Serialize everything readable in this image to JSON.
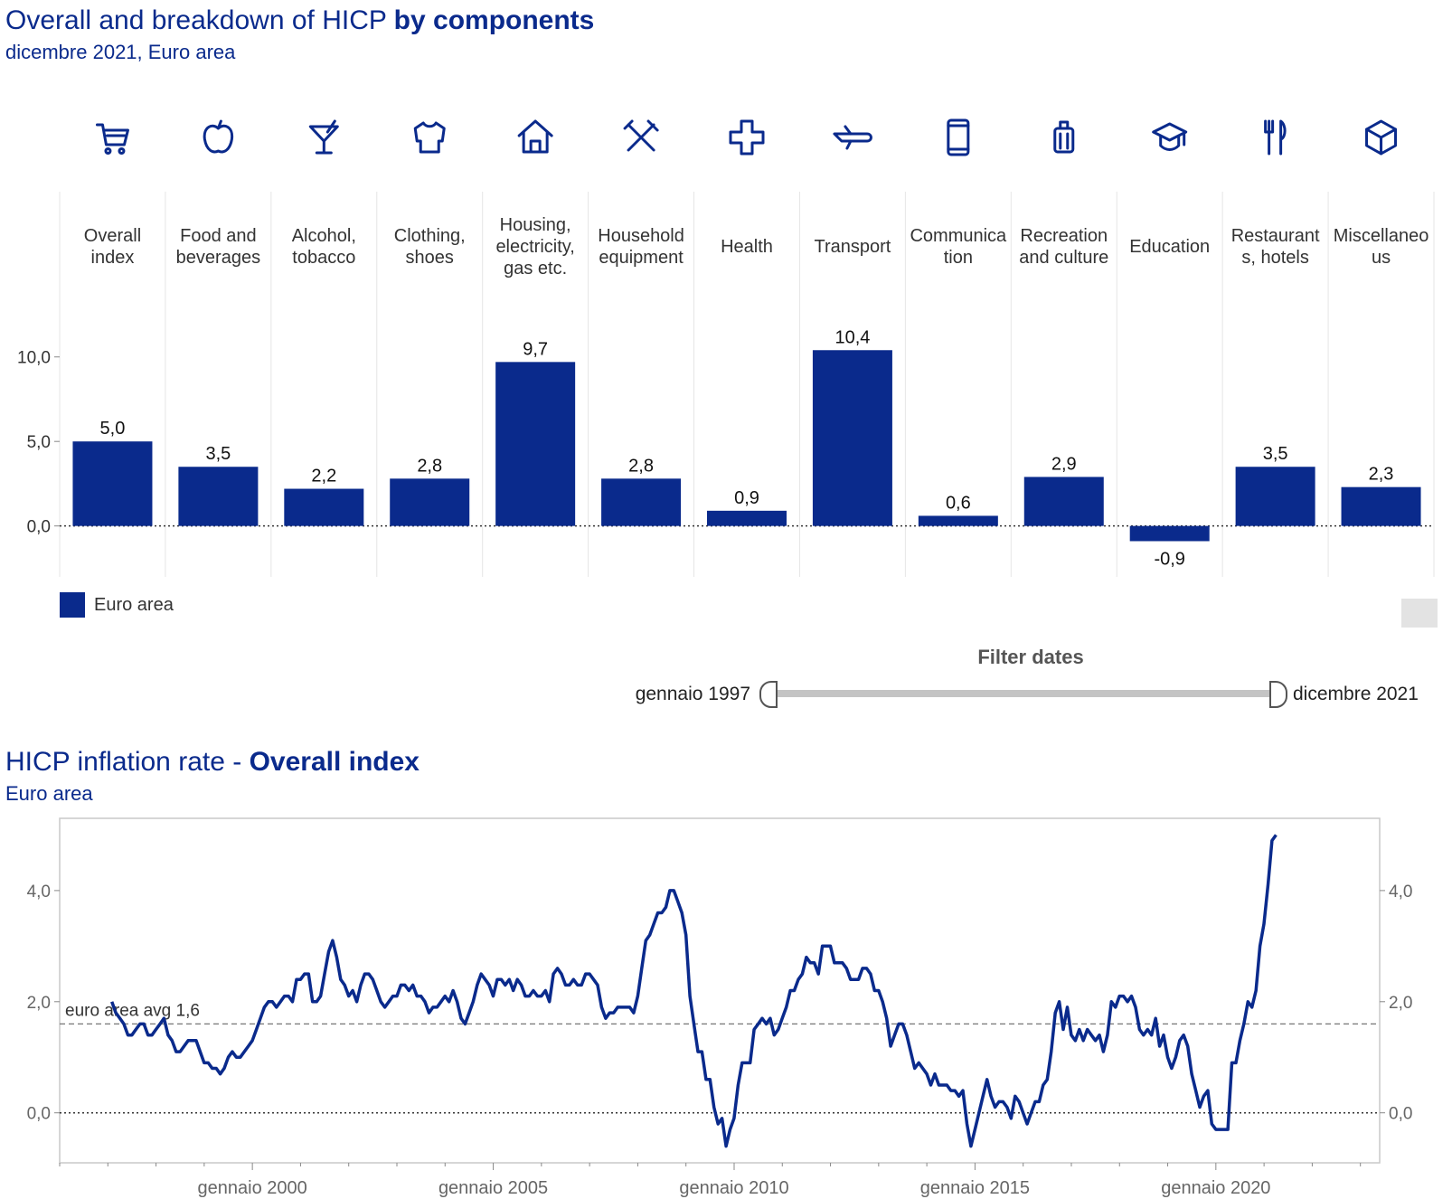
{
  "header1": {
    "title": "Overall and breakdown of HICP ",
    "title_bold": "by components",
    "subtitle": "dicembre 2021, Euro area"
  },
  "header2": {
    "title": "HICP inflation rate - ",
    "title_bold": "Overall index",
    "subtitle": "Euro area"
  },
  "legend": {
    "label": "Euro area"
  },
  "filter": {
    "title": "Filter dates",
    "start": "gennaio 1997",
    "end": "dicembre 2021"
  },
  "colors": {
    "accent": "#0a2a8c",
    "grid": "#e6e6e6"
  },
  "icons": [
    "cart-icon",
    "apple-icon",
    "cocktail-icon",
    "shirt-icon",
    "house-icon",
    "tools-icon",
    "cross-icon",
    "plane-icon",
    "phone-icon",
    "luggage-icon",
    "graduation-cap-icon",
    "cutlery-icon",
    "cube-icon"
  ],
  "chart_data": [
    {
      "type": "bar",
      "title": "Overall and breakdown of HICP by components",
      "subtitle": "dicembre 2021, Euro area",
      "categories": [
        [
          "Overall",
          "index"
        ],
        [
          "Food and",
          "beverages"
        ],
        [
          "Alcohol,",
          "tobacco"
        ],
        [
          "Clothing,",
          "shoes"
        ],
        [
          "Housing,",
          "electricity,",
          "gas etc."
        ],
        [
          "Household",
          "equipment"
        ],
        [
          "Health"
        ],
        [
          "Transport"
        ],
        [
          "Communica",
          "tion"
        ],
        [
          "Recreation",
          "and culture"
        ],
        [
          "Education"
        ],
        [
          "Restaurant",
          "s, hotels"
        ],
        [
          "Miscellaneo",
          "us"
        ]
      ],
      "series": [
        {
          "name": "Euro area",
          "values": [
            5.0,
            3.5,
            2.2,
            2.8,
            9.7,
            2.8,
            0.9,
            10.4,
            0.6,
            2.9,
            -0.9,
            3.5,
            2.3
          ]
        }
      ],
      "value_labels": [
        "5,0",
        "3,5",
        "2,2",
        "2,8",
        "9,7",
        "2,8",
        "0,9",
        "10,4",
        "0,6",
        "2,9",
        "-0,9",
        "3,5",
        "2,3"
      ],
      "yticks": [
        {
          "v": 0,
          "label": "0,0"
        },
        {
          "v": 5,
          "label": "5,0"
        },
        {
          "v": 10,
          "label": "10,0"
        }
      ],
      "ylim": [
        -2.8,
        12.5
      ],
      "legend_position": "bottom-left"
    },
    {
      "type": "line",
      "title": "HICP inflation rate - Overall index",
      "subtitle": "Euro area",
      "series": [
        {
          "name": "Euro area",
          "x_start": 1997.083,
          "x_step": 0.08333,
          "values": [
            2.0,
            1.8,
            1.7,
            1.6,
            1.4,
            1.4,
            1.5,
            1.6,
            1.6,
            1.4,
            1.4,
            1.5,
            1.6,
            1.7,
            1.4,
            1.3,
            1.1,
            1.1,
            1.2,
            1.3,
            1.3,
            1.3,
            1.1,
            0.9,
            0.9,
            0.8,
            0.8,
            0.7,
            0.8,
            1.0,
            1.1,
            1.0,
            1.0,
            1.1,
            1.2,
            1.3,
            1.5,
            1.7,
            1.9,
            2.0,
            2.0,
            1.9,
            2.0,
            2.1,
            2.1,
            2.0,
            2.4,
            2.4,
            2.5,
            2.5,
            2.0,
            2.0,
            2.1,
            2.5,
            2.9,
            3.1,
            2.8,
            2.4,
            2.3,
            2.1,
            2.2,
            2.0,
            2.3,
            2.5,
            2.5,
            2.4,
            2.2,
            2.0,
            1.9,
            2.0,
            2.1,
            2.1,
            2.3,
            2.3,
            2.2,
            2.3,
            2.1,
            2.1,
            2.0,
            1.8,
            1.9,
            1.9,
            2.0,
            2.1,
            2.0,
            2.2,
            2.0,
            1.7,
            1.6,
            1.8,
            2.0,
            2.3,
            2.5,
            2.4,
            2.3,
            2.1,
            2.4,
            2.4,
            2.3,
            2.4,
            2.2,
            2.4,
            2.3,
            2.1,
            2.1,
            2.2,
            2.1,
            2.1,
            2.2,
            2.0,
            2.5,
            2.6,
            2.5,
            2.3,
            2.3,
            2.4,
            2.3,
            2.3,
            2.5,
            2.5,
            2.4,
            2.3,
            1.9,
            1.7,
            1.8,
            1.8,
            1.9,
            1.9,
            1.9,
            1.9,
            1.8,
            2.1,
            2.6,
            3.1,
            3.2,
            3.4,
            3.6,
            3.6,
            3.7,
            4.0,
            4.0,
            3.8,
            3.6,
            3.2,
            2.1,
            1.6,
            1.1,
            1.1,
            0.6,
            0.6,
            0.1,
            -0.2,
            -0.1,
            -0.6,
            -0.3,
            -0.1,
            0.5,
            0.9,
            0.9,
            0.9,
            1.5,
            1.6,
            1.7,
            1.6,
            1.7,
            1.4,
            1.5,
            1.7,
            1.9,
            2.2,
            2.2,
            2.4,
            2.5,
            2.8,
            2.7,
            2.7,
            2.5,
            3.0,
            3.0,
            3.0,
            2.7,
            2.7,
            2.7,
            2.6,
            2.4,
            2.4,
            2.4,
            2.6,
            2.6,
            2.5,
            2.2,
            2.2,
            2.0,
            1.7,
            1.2,
            1.4,
            1.6,
            1.6,
            1.4,
            1.1,
            0.8,
            0.9,
            0.8,
            0.7,
            0.5,
            0.7,
            0.5,
            0.5,
            0.5,
            0.4,
            0.4,
            0.3,
            0.4,
            -0.2,
            -0.6,
            -0.3,
            0.0,
            0.3,
            0.6,
            0.3,
            0.1,
            0.2,
            0.2,
            0.1,
            -0.1,
            0.3,
            0.2,
            0.0,
            -0.2,
            0.0,
            0.2,
            0.2,
            0.5,
            0.6,
            1.1,
            1.8,
            2.0,
            1.5,
            1.9,
            1.4,
            1.3,
            1.5,
            1.3,
            1.5,
            1.4,
            1.3,
            1.4,
            1.1,
            1.4,
            2.0,
            1.9,
            2.1,
            2.1,
            2.0,
            2.1,
            1.9,
            1.5,
            1.4,
            1.5,
            1.4,
            1.7,
            1.2,
            1.4,
            1.0,
            0.8,
            1.0,
            1.3,
            1.4,
            1.2,
            0.7,
            0.4,
            0.1,
            0.3,
            0.4,
            -0.2,
            -0.3,
            -0.3,
            -0.3,
            -0.3,
            0.9,
            0.9,
            1.3,
            1.6,
            2.0,
            1.9,
            2.2,
            3.0,
            3.4,
            4.1,
            4.9,
            5.0
          ]
        }
      ],
      "x_ticks": [
        {
          "v": 2000,
          "label": "gennaio 2000"
        },
        {
          "v": 2005,
          "label": "gennaio 2005"
        },
        {
          "v": 2010,
          "label": "gennaio 2010"
        },
        {
          "v": 2015,
          "label": "gennaio 2015"
        },
        {
          "v": 2020,
          "label": "gennaio 2020"
        }
      ],
      "yticks": [
        {
          "v": 0,
          "label": "0,0"
        },
        {
          "v": 2,
          "label": "2,0"
        },
        {
          "v": 4,
          "label": "4,0"
        }
      ],
      "xlim": [
        1996,
        2023.4
      ],
      "ylim": [
        -0.9,
        5.3
      ],
      "reference_line": {
        "value": 1.6,
        "label": "euro area avg 1,6"
      }
    }
  ]
}
